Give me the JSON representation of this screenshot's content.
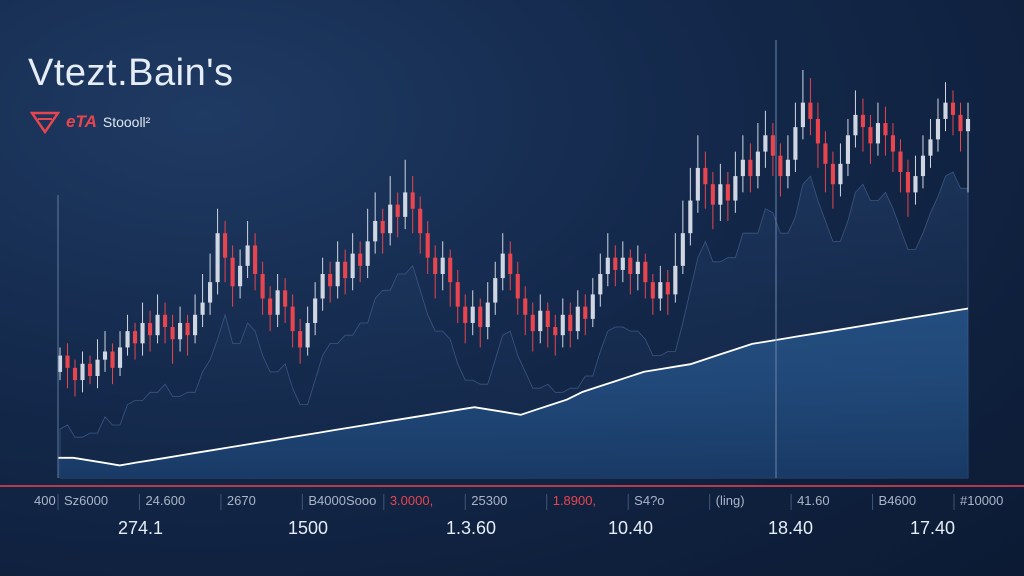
{
  "header": {
    "title": "Vtezt.Bain's",
    "logo_text": "eTA",
    "subtitle": "Stoooll²"
  },
  "colors": {
    "background": "#13284a",
    "bull": "#d0d7e3",
    "bear": "#e8454e",
    "area_line": "#ffffff",
    "area_fill": "#2b5a8f",
    "axis": "#e8454e"
  },
  "chart_data": {
    "type": "line",
    "y_axis_label": "400",
    "tick_labels": [
      {
        "text": "Sz6000",
        "highlight": false
      },
      {
        "text": "24.600",
        "highlight": false
      },
      {
        "text": "2670",
        "highlight": false
      },
      {
        "text": "B4000Sooo",
        "highlight": false
      },
      {
        "text": "3.0000,",
        "highlight": true
      },
      {
        "text": "25300",
        "highlight": false
      },
      {
        "text": "1.8900,",
        "highlight": true
      },
      {
        "text": "S4?o",
        "highlight": false
      },
      {
        "text": "(ling)",
        "highlight": false
      },
      {
        "text": "41.60",
        "highlight": false
      },
      {
        "text": "B4600",
        "highlight": false
      },
      {
        "text": "#10000",
        "highlight": false
      }
    ],
    "x_labels": [
      "274.1",
      "1500",
      "1.3.60",
      "10.40",
      "18.40",
      "17.40"
    ],
    "candles": [
      {
        "o": 26,
        "c": 30,
        "h": 32,
        "l": 24
      },
      {
        "o": 30,
        "c": 27,
        "h": 33,
        "l": 22
      },
      {
        "o": 27,
        "c": 24,
        "h": 29,
        "l": 20
      },
      {
        "o": 24,
        "c": 28,
        "h": 31,
        "l": 21
      },
      {
        "o": 28,
        "c": 25,
        "h": 30,
        "l": 23
      },
      {
        "o": 25,
        "c": 29,
        "h": 34,
        "l": 22
      },
      {
        "o": 29,
        "c": 31,
        "h": 36,
        "l": 26
      },
      {
        "o": 31,
        "c": 27,
        "h": 33,
        "l": 23
      },
      {
        "o": 27,
        "c": 32,
        "h": 36,
        "l": 25
      },
      {
        "o": 32,
        "c": 36,
        "h": 40,
        "l": 30
      },
      {
        "o": 36,
        "c": 33,
        "h": 38,
        "l": 29
      },
      {
        "o": 33,
        "c": 38,
        "h": 43,
        "l": 30
      },
      {
        "o": 38,
        "c": 35,
        "h": 41,
        "l": 31
      },
      {
        "o": 35,
        "c": 40,
        "h": 45,
        "l": 33
      },
      {
        "o": 40,
        "c": 37,
        "h": 43,
        "l": 33
      },
      {
        "o": 37,
        "c": 34,
        "h": 40,
        "l": 28
      },
      {
        "o": 34,
        "c": 38,
        "h": 42,
        "l": 31
      },
      {
        "o": 38,
        "c": 35,
        "h": 40,
        "l": 30
      },
      {
        "o": 35,
        "c": 40,
        "h": 45,
        "l": 33
      },
      {
        "o": 40,
        "c": 43,
        "h": 50,
        "l": 37
      },
      {
        "o": 43,
        "c": 48,
        "h": 55,
        "l": 40
      },
      {
        "o": 48,
        "c": 60,
        "h": 66,
        "l": 45
      },
      {
        "o": 60,
        "c": 54,
        "h": 63,
        "l": 48
      },
      {
        "o": 54,
        "c": 47,
        "h": 57,
        "l": 42
      },
      {
        "o": 47,
        "c": 52,
        "h": 56,
        "l": 44
      },
      {
        "o": 52,
        "c": 57,
        "h": 63,
        "l": 49
      },
      {
        "o": 57,
        "c": 50,
        "h": 60,
        "l": 46
      },
      {
        "o": 50,
        "c": 44,
        "h": 53,
        "l": 40
      },
      {
        "o": 44,
        "c": 40,
        "h": 47,
        "l": 36
      },
      {
        "o": 40,
        "c": 46,
        "h": 50,
        "l": 37
      },
      {
        "o": 46,
        "c": 42,
        "h": 49,
        "l": 38
      },
      {
        "o": 42,
        "c": 36,
        "h": 45,
        "l": 32
      },
      {
        "o": 36,
        "c": 32,
        "h": 39,
        "l": 28
      },
      {
        "o": 32,
        "c": 38,
        "h": 42,
        "l": 30
      },
      {
        "o": 38,
        "c": 44,
        "h": 48,
        "l": 35
      },
      {
        "o": 44,
        "c": 50,
        "h": 54,
        "l": 41
      },
      {
        "o": 50,
        "c": 47,
        "h": 53,
        "l": 43
      },
      {
        "o": 47,
        "c": 53,
        "h": 58,
        "l": 44
      },
      {
        "o": 53,
        "c": 49,
        "h": 56,
        "l": 45
      },
      {
        "o": 49,
        "c": 55,
        "h": 60,
        "l": 46
      },
      {
        "o": 55,
        "c": 52,
        "h": 58,
        "l": 48
      },
      {
        "o": 52,
        "c": 58,
        "h": 66,
        "l": 49
      },
      {
        "o": 58,
        "c": 63,
        "h": 70,
        "l": 55
      },
      {
        "o": 63,
        "c": 60,
        "h": 66,
        "l": 55
      },
      {
        "o": 60,
        "c": 67,
        "h": 74,
        "l": 57
      },
      {
        "o": 67,
        "c": 64,
        "h": 70,
        "l": 59
      },
      {
        "o": 64,
        "c": 70,
        "h": 78,
        "l": 61
      },
      {
        "o": 70,
        "c": 66,
        "h": 74,
        "l": 60
      },
      {
        "o": 66,
        "c": 60,
        "h": 69,
        "l": 55
      },
      {
        "o": 60,
        "c": 54,
        "h": 63,
        "l": 50
      },
      {
        "o": 54,
        "c": 50,
        "h": 57,
        "l": 44
      },
      {
        "o": 50,
        "c": 54,
        "h": 58,
        "l": 46
      },
      {
        "o": 54,
        "c": 48,
        "h": 56,
        "l": 42
      },
      {
        "o": 48,
        "c": 42,
        "h": 51,
        "l": 38
      },
      {
        "o": 42,
        "c": 38,
        "h": 45,
        "l": 33
      },
      {
        "o": 38,
        "c": 42,
        "h": 46,
        "l": 35
      },
      {
        "o": 42,
        "c": 37,
        "h": 44,
        "l": 32
      },
      {
        "o": 37,
        "c": 43,
        "h": 48,
        "l": 34
      },
      {
        "o": 43,
        "c": 49,
        "h": 53,
        "l": 40
      },
      {
        "o": 49,
        "c": 55,
        "h": 60,
        "l": 46
      },
      {
        "o": 55,
        "c": 50,
        "h": 58,
        "l": 46
      },
      {
        "o": 50,
        "c": 44,
        "h": 53,
        "l": 40
      },
      {
        "o": 44,
        "c": 40,
        "h": 47,
        "l": 35
      },
      {
        "o": 40,
        "c": 36,
        "h": 43,
        "l": 31
      },
      {
        "o": 36,
        "c": 41,
        "h": 45,
        "l": 33
      },
      {
        "o": 41,
        "c": 37,
        "h": 43,
        "l": 32
      },
      {
        "o": 37,
        "c": 35,
        "h": 40,
        "l": 30
      },
      {
        "o": 35,
        "c": 40,
        "h": 44,
        "l": 32
      },
      {
        "o": 40,
        "c": 36,
        "h": 43,
        "l": 32
      },
      {
        "o": 36,
        "c": 42,
        "h": 46,
        "l": 34
      },
      {
        "o": 42,
        "c": 39,
        "h": 45,
        "l": 35
      },
      {
        "o": 39,
        "c": 45,
        "h": 49,
        "l": 37
      },
      {
        "o": 45,
        "c": 50,
        "h": 55,
        "l": 42
      },
      {
        "o": 50,
        "c": 54,
        "h": 60,
        "l": 47
      },
      {
        "o": 54,
        "c": 51,
        "h": 57,
        "l": 47
      },
      {
        "o": 51,
        "c": 54,
        "h": 58,
        "l": 48
      },
      {
        "o": 54,
        "c": 50,
        "h": 56,
        "l": 45
      },
      {
        "o": 50,
        "c": 53,
        "h": 57,
        "l": 46
      },
      {
        "o": 53,
        "c": 48,
        "h": 55,
        "l": 44
      },
      {
        "o": 48,
        "c": 44,
        "h": 50,
        "l": 40
      },
      {
        "o": 44,
        "c": 48,
        "h": 52,
        "l": 41
      },
      {
        "o": 48,
        "c": 45,
        "h": 51,
        "l": 40
      },
      {
        "o": 45,
        "c": 52,
        "h": 60,
        "l": 43
      },
      {
        "o": 52,
        "c": 60,
        "h": 68,
        "l": 50
      },
      {
        "o": 60,
        "c": 68,
        "h": 76,
        "l": 57
      },
      {
        "o": 68,
        "c": 76,
        "h": 84,
        "l": 65
      },
      {
        "o": 76,
        "c": 72,
        "h": 80,
        "l": 66
      },
      {
        "o": 72,
        "c": 67,
        "h": 75,
        "l": 61
      },
      {
        "o": 67,
        "c": 72,
        "h": 77,
        "l": 63
      },
      {
        "o": 72,
        "c": 68,
        "h": 75,
        "l": 63
      },
      {
        "o": 68,
        "c": 74,
        "h": 80,
        "l": 65
      },
      {
        "o": 74,
        "c": 78,
        "h": 84,
        "l": 70
      },
      {
        "o": 78,
        "c": 74,
        "h": 82,
        "l": 70
      },
      {
        "o": 74,
        "c": 80,
        "h": 87,
        "l": 71
      },
      {
        "o": 80,
        "c": 84,
        "h": 90,
        "l": 76
      },
      {
        "o": 84,
        "c": 79,
        "h": 87,
        "l": 74
      },
      {
        "o": 79,
        "c": 74,
        "h": 82,
        "l": 69
      },
      {
        "o": 74,
        "c": 78,
        "h": 84,
        "l": 71
      },
      {
        "o": 78,
        "c": 86,
        "h": 92,
        "l": 75
      },
      {
        "o": 86,
        "c": 92,
        "h": 100,
        "l": 83
      },
      {
        "o": 92,
        "c": 88,
        "h": 98,
        "l": 84
      },
      {
        "o": 88,
        "c": 82,
        "h": 92,
        "l": 76
      },
      {
        "o": 82,
        "c": 77,
        "h": 85,
        "l": 70
      },
      {
        "o": 77,
        "c": 72,
        "h": 80,
        "l": 66
      },
      {
        "o": 72,
        "c": 77,
        "h": 82,
        "l": 69
      },
      {
        "o": 77,
        "c": 84,
        "h": 88,
        "l": 74
      },
      {
        "o": 84,
        "c": 89,
        "h": 95,
        "l": 81
      },
      {
        "o": 89,
        "c": 86,
        "h": 93,
        "l": 80
      },
      {
        "o": 86,
        "c": 82,
        "h": 89,
        "l": 77
      },
      {
        "o": 82,
        "c": 87,
        "h": 92,
        "l": 79
      },
      {
        "o": 87,
        "c": 84,
        "h": 91,
        "l": 79
      },
      {
        "o": 84,
        "c": 80,
        "h": 87,
        "l": 75
      },
      {
        "o": 80,
        "c": 75,
        "h": 83,
        "l": 70
      },
      {
        "o": 75,
        "c": 70,
        "h": 78,
        "l": 64
      },
      {
        "o": 70,
        "c": 74,
        "h": 79,
        "l": 67
      },
      {
        "o": 74,
        "c": 79,
        "h": 84,
        "l": 71
      },
      {
        "o": 79,
        "c": 83,
        "h": 88,
        "l": 76
      },
      {
        "o": 83,
        "c": 88,
        "h": 93,
        "l": 80
      },
      {
        "o": 88,
        "c": 92,
        "h": 97,
        "l": 85
      },
      {
        "o": 92,
        "c": 89,
        "h": 95,
        "l": 84
      },
      {
        "o": 89,
        "c": 85,
        "h": 92,
        "l": 80
      },
      {
        "o": 85,
        "c": 88,
        "h": 92,
        "l": 70
      }
    ],
    "area_series": [
      8,
      8,
      7,
      6,
      5,
      6,
      7,
      8,
      9,
      10,
      11,
      12,
      13,
      14,
      15,
      16,
      17,
      18,
      19,
      20,
      21,
      22,
      23,
      24,
      25,
      26,
      27,
      28,
      27,
      26,
      25,
      27,
      29,
      31,
      34,
      36,
      38,
      40,
      42,
      43,
      44,
      45,
      47,
      49,
      51,
      53,
      54,
      55,
      56,
      57,
      58,
      59,
      60,
      61,
      62,
      63,
      64,
      65,
      66,
      67
    ],
    "area_range": [
      0,
      100
    ]
  }
}
